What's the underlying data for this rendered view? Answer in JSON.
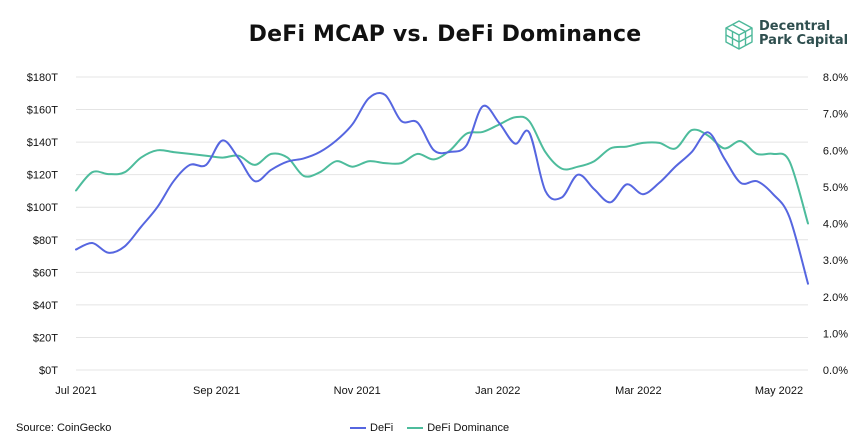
{
  "colors": {
    "defi": "#5666e0",
    "dominance": "#4dbc9c",
    "logo": "#4db89a"
  },
  "logo": {
    "line1": "Decentral",
    "line2": "Park Capital",
    "icon": "cube-icon"
  },
  "source": "Source: CoinGecko",
  "chart_data": {
    "type": "line",
    "title": "DeFi MCAP vs. DeFi Dominance",
    "xlabel": "",
    "ylabel": "",
    "x_ticks": [
      "Jul 2021",
      "Sep 2021",
      "Nov 2021",
      "Jan 2022",
      "Mar 2022",
      "May 2022"
    ],
    "x_range": [
      "2021-07-01",
      "2022-05-12"
    ],
    "y_left_ticks": [
      "$0T",
      "$20T",
      "$40T",
      "$60T",
      "$80T",
      "$100T",
      "$120T",
      "$140T",
      "$160T",
      "$180T"
    ],
    "ylim_left": [
      0,
      180
    ],
    "y_right_ticks": [
      "0.0%",
      "1.0%",
      "2.0%",
      "3.0%",
      "4.0%",
      "5.0%",
      "6.0%",
      "7.0%",
      "8.0%"
    ],
    "ylim_right": [
      0,
      8
    ],
    "grid": true,
    "legend_position": "bottom",
    "series": [
      {
        "name": "DeFi",
        "axis": "left",
        "points": [
          [
            "2021-07-01",
            74
          ],
          [
            "2021-07-08",
            78
          ],
          [
            "2021-07-15",
            72
          ],
          [
            "2021-07-22",
            76
          ],
          [
            "2021-07-29",
            88
          ],
          [
            "2021-08-05",
            100
          ],
          [
            "2021-08-12",
            116
          ],
          [
            "2021-08-19",
            126
          ],
          [
            "2021-08-26",
            126
          ],
          [
            "2021-09-02",
            141
          ],
          [
            "2021-09-09",
            130
          ],
          [
            "2021-09-16",
            116
          ],
          [
            "2021-09-23",
            123
          ],
          [
            "2021-09-30",
            128
          ],
          [
            "2021-10-07",
            130
          ],
          [
            "2021-10-14",
            134
          ],
          [
            "2021-10-21",
            141
          ],
          [
            "2021-10-28",
            151
          ],
          [
            "2021-11-04",
            167
          ],
          [
            "2021-11-11",
            169
          ],
          [
            "2021-11-18",
            153
          ],
          [
            "2021-11-25",
            152
          ],
          [
            "2021-12-02",
            135
          ],
          [
            "2021-12-09",
            134
          ],
          [
            "2021-12-16",
            138
          ],
          [
            "2021-12-23",
            162
          ],
          [
            "2021-12-30",
            152
          ],
          [
            "2022-01-06",
            139
          ],
          [
            "2022-01-12",
            146
          ],
          [
            "2022-01-19",
            110
          ],
          [
            "2022-01-26",
            106
          ],
          [
            "2022-02-02",
            120
          ],
          [
            "2022-02-09",
            111
          ],
          [
            "2022-02-16",
            103
          ],
          [
            "2022-02-23",
            114
          ],
          [
            "2022-03-02",
            108
          ],
          [
            "2022-03-09",
            115
          ],
          [
            "2022-03-16",
            125
          ],
          [
            "2022-03-23",
            134
          ],
          [
            "2022-03-30",
            146
          ],
          [
            "2022-04-06",
            130
          ],
          [
            "2022-04-13",
            115
          ],
          [
            "2022-04-20",
            116
          ],
          [
            "2022-04-27",
            108
          ],
          [
            "2022-05-04",
            94
          ],
          [
            "2022-05-12",
            53
          ]
        ]
      },
      {
        "name": "DeFi Dominance",
        "axis": "right",
        "points": [
          [
            "2021-07-01",
            4.9
          ],
          [
            "2021-07-08",
            5.4
          ],
          [
            "2021-07-15",
            5.35
          ],
          [
            "2021-07-22",
            5.4
          ],
          [
            "2021-07-29",
            5.8
          ],
          [
            "2021-08-05",
            6.0
          ],
          [
            "2021-08-12",
            5.95
          ],
          [
            "2021-08-19",
            5.9
          ],
          [
            "2021-08-26",
            5.85
          ],
          [
            "2021-09-02",
            5.8
          ],
          [
            "2021-09-09",
            5.85
          ],
          [
            "2021-09-16",
            5.6
          ],
          [
            "2021-09-23",
            5.9
          ],
          [
            "2021-09-30",
            5.8
          ],
          [
            "2021-10-07",
            5.3
          ],
          [
            "2021-10-14",
            5.4
          ],
          [
            "2021-10-21",
            5.7
          ],
          [
            "2021-10-28",
            5.55
          ],
          [
            "2021-11-04",
            5.7
          ],
          [
            "2021-11-11",
            5.65
          ],
          [
            "2021-11-18",
            5.65
          ],
          [
            "2021-11-25",
            5.9
          ],
          [
            "2021-12-02",
            5.75
          ],
          [
            "2021-12-09",
            6.0
          ],
          [
            "2021-12-16",
            6.45
          ],
          [
            "2021-12-23",
            6.5
          ],
          [
            "2021-12-30",
            6.7
          ],
          [
            "2022-01-06",
            6.9
          ],
          [
            "2022-01-12",
            6.8
          ],
          [
            "2022-01-19",
            5.95
          ],
          [
            "2022-01-26",
            5.5
          ],
          [
            "2022-02-02",
            5.55
          ],
          [
            "2022-02-09",
            5.7
          ],
          [
            "2022-02-16",
            6.05
          ],
          [
            "2022-02-23",
            6.1
          ],
          [
            "2022-03-02",
            6.2
          ],
          [
            "2022-03-09",
            6.2
          ],
          [
            "2022-03-16",
            6.05
          ],
          [
            "2022-03-23",
            6.55
          ],
          [
            "2022-03-30",
            6.4
          ],
          [
            "2022-04-06",
            6.05
          ],
          [
            "2022-04-13",
            6.25
          ],
          [
            "2022-04-20",
            5.9
          ],
          [
            "2022-04-27",
            5.9
          ],
          [
            "2022-05-04",
            5.7
          ],
          [
            "2022-05-12",
            4.0
          ]
        ]
      }
    ]
  }
}
